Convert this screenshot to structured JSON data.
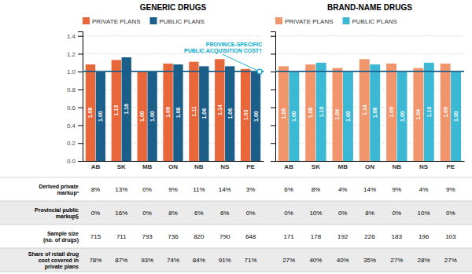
{
  "chart_data": [
    {
      "type": "bar",
      "title": "GENERIC DRUGS",
      "categories": [
        "AB",
        "SK",
        "MB",
        "ON",
        "NB",
        "NS",
        "PE"
      ],
      "series": [
        {
          "name": "PRIVATE PLANS",
          "color": "#E8673A",
          "values": [
            1.08,
            1.13,
            1.0,
            1.09,
            1.11,
            1.14,
            1.03
          ],
          "value_labels": [
            "1.08",
            "1.13",
            "1.00",
            "1.09",
            "1.11",
            "1.14",
            "1.03"
          ]
        },
        {
          "name": "PUBLIC PLANS",
          "color": "#1B5E8A",
          "values": [
            1.0,
            1.16,
            1.0,
            1.08,
            1.06,
            1.06,
            1.0
          ],
          "value_labels": [
            "1.00",
            "1.16",
            "1.00",
            "1.08",
            "1.06",
            "1.06",
            "1.00"
          ]
        }
      ],
      "ylim": [
        0.0,
        1.45
      ],
      "yticks": [
        {
          "value": 0.0,
          "label": "0.0"
        },
        0.2,
        0.4,
        0.6,
        0.8,
        {
          "value": 1.0,
          "label": "1.0"
        },
        1.2,
        1.4
      ],
      "grid": true,
      "legend": "upper left",
      "data_labels": true,
      "reference_line": 1.0,
      "annotations": [
        {
          "text": "PROVINCE-SPECIFIC\nPUBLIC ACQUISITION COST†",
          "color": "#00AACC"
        }
      ],
      "table": {
        "row_labels": [
          "Derived private\nmarkup¹",
          "Provincial public\nmarkup§",
          "Sample size\n(no. of drugs)",
          "Share of retail drug\ncost covered in\nprivate plans"
        ],
        "rows": [
          [
            "8%",
            "13%",
            "0%",
            "9%",
            "11%",
            "14%",
            "3%"
          ],
          [
            "0%",
            "16%",
            "0%",
            "8%",
            "6%",
            "6%",
            "0%"
          ],
          [
            "715",
            "711",
            "793",
            "736",
            "820",
            "790",
            "648"
          ],
          [
            "78%",
            "87%",
            "93%",
            "74%",
            "84%",
            "91%",
            "71%"
          ]
        ]
      }
    },
    {
      "type": "bar",
      "title": "BRAND-NAME DRUGS",
      "categories": [
        "AB",
        "SK",
        "MB",
        "ON",
        "NB",
        "NS",
        "PE"
      ],
      "series": [
        {
          "name": "PRIVATE PLANS",
          "color": "#F0956C",
          "values": [
            1.06,
            1.08,
            1.04,
            1.14,
            1.09,
            1.04,
            1.09
          ],
          "value_labels": [
            "1.06",
            "1.08",
            "1.04",
            "1.14",
            "1.09",
            "1.04",
            "1.09"
          ]
        },
        {
          "name": "PUBLIC PLANS",
          "color": "#3BB8D4",
          "values": [
            1.0,
            1.1,
            1.0,
            1.08,
            1.0,
            1.1,
            1.0
          ],
          "value_labels": [
            "1.00",
            "1.10",
            "1.00",
            "1.08",
            "1.00",
            "1.10",
            "1.00"
          ]
        }
      ],
      "ylim": [
        0.0,
        1.45
      ],
      "yticks": [
        {
          "value": 0.0,
          "label": "0.0"
        },
        0.2,
        0.4,
        0.6,
        0.8,
        {
          "value": 1.0,
          "label": "1.0"
        },
        1.2,
        1.4
      ],
      "grid": true,
      "legend": "upper left",
      "data_labels": true,
      "tick_labels": "x",
      "reference_line": 1.0,
      "table": {
        "rows": [
          [
            "6%",
            "8%",
            "4%",
            "14%",
            "9%",
            "4%",
            "9%"
          ],
          [
            "0%",
            "10%",
            "0%",
            "8%",
            "0%",
            "10%",
            "0%"
          ],
          [
            "171",
            "178",
            "192",
            "226",
            "183",
            "196",
            "103"
          ],
          [
            "27%",
            "40%",
            "40%",
            "35%",
            "27%",
            "28%",
            "27%"
          ]
        ]
      }
    }
  ]
}
